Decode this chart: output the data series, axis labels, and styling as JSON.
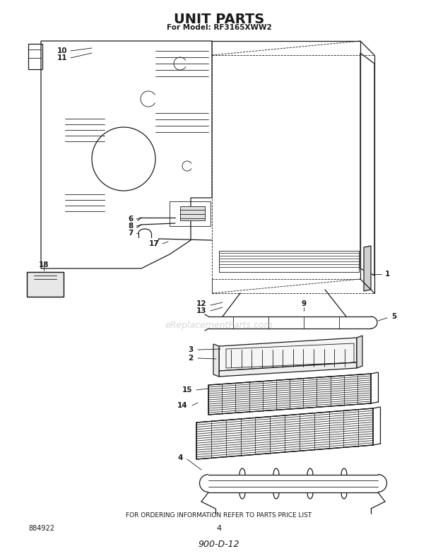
{
  "title": "UNIT PARTS",
  "subtitle": "For Model: RF3165XWW2",
  "footer_text": "FOR ORDERING INFORMATION REFER TO PARTS PRICE LIST",
  "page_number": "4",
  "doc_number": "884922",
  "doc_code": "900-D-12",
  "watermark": "eReplacementParts.com",
  "bg_color": "#ffffff",
  "line_color": "#1a1a1a",
  "watermark_color": "#bbbbbb"
}
